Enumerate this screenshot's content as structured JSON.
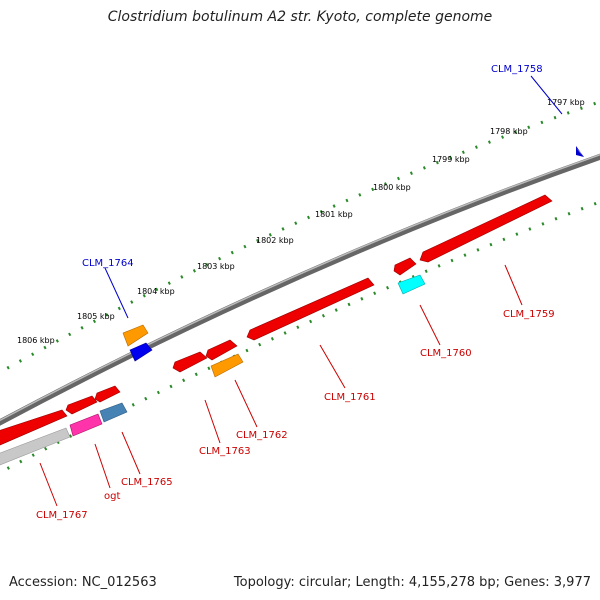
{
  "title": "Clostridium botulinum A2 str. Kyoto, complete genome",
  "footer": {
    "accession": "Accession: NC_012563",
    "summary": "Topology: circular; Length: 4,155,278 bp; Genes: 3,977"
  },
  "colors": {
    "backbone": "#8a8a8a",
    "ruler": "#2a8a2a",
    "forward_label": "#0000cc",
    "reverse_label": "#cc0000",
    "red_gene": "#ee0000",
    "orange_gene": "#ff9900",
    "blue_gene": "#0000ee",
    "cyan_gene": "#00ffff",
    "magenta_gene": "#ff33aa",
    "steel_gene": "#4682b4",
    "grey_gene": "#c8c8c8",
    "direction_marker": "#0000cc"
  },
  "ruler_ticks": [
    "1797 kbp",
    "1798 kbp",
    "1799 kbp",
    "1800 kbp",
    "1801 kbp",
    "1802 kbp",
    "1803 kbp",
    "1804 kbp",
    "1805 kbp",
    "1806 kbp"
  ],
  "gene_labels": {
    "clm_1758": "CLM_1758",
    "clm_1764": "CLM_1764",
    "clm_1759": "CLM_1759",
    "clm_1760": "CLM_1760",
    "clm_1761": "CLM_1761",
    "clm_1762": "CLM_1762",
    "clm_1763": "CLM_1763",
    "clm_1765": "CLM_1765",
    "ogt": "ogt",
    "clm_1767": "CLM_1767"
  }
}
